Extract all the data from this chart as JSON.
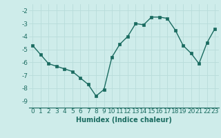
{
  "x": [
    0,
    1,
    2,
    3,
    4,
    5,
    6,
    7,
    8,
    9,
    10,
    11,
    12,
    13,
    14,
    15,
    16,
    17,
    18,
    19,
    20,
    21,
    22,
    23
  ],
  "y": [
    -4.7,
    -5.4,
    -6.1,
    -6.3,
    -6.5,
    -6.7,
    -7.2,
    -7.7,
    -8.6,
    -8.1,
    -5.6,
    -4.6,
    -4.0,
    -3.0,
    -3.1,
    -2.5,
    -2.5,
    -2.6,
    -3.5,
    -4.7,
    -5.3,
    -6.1,
    -4.5,
    -3.4
  ],
  "line_color": "#1a6b60",
  "marker": "s",
  "marker_size": 2.2,
  "bg_color": "#ceecea",
  "grid_color": "#b8dcda",
  "xlabel": "Humidex (Indice chaleur)",
  "ylim": [
    -9.5,
    -1.5
  ],
  "xlim": [
    -0.5,
    23.5
  ],
  "yticks": [
    -9,
    -8,
    -7,
    -6,
    -5,
    -4,
    -3,
    -2
  ],
  "xtick_labels": [
    "0",
    "1",
    "2",
    "3",
    "4",
    "5",
    "6",
    "7",
    "8",
    "9",
    "10",
    "11",
    "12",
    "13",
    "14",
    "15",
    "16",
    "17",
    "18",
    "19",
    "20",
    "21",
    "22",
    "23"
  ],
  "label_fontsize": 7,
  "tick_fontsize": 6.5
}
